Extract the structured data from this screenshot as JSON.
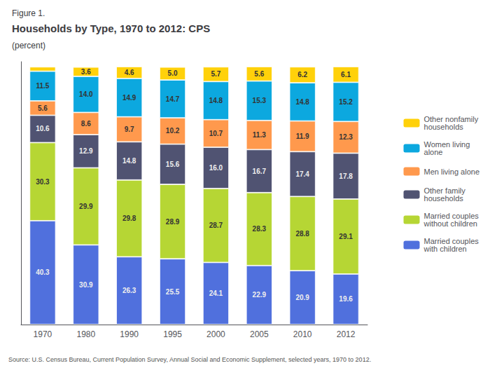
{
  "chart_data": {
    "type": "bar",
    "stacked": true,
    "subtitle": "Figure 1.",
    "title": "Households by Type, 1970 to 2012: CPS",
    "ylabel": "(percent)",
    "annotations": [
      "Source: U.S. Census Bureau, Current Population Survey, Annual Social and Economic Supplement, selected years, 1970 to 2012."
    ],
    "categories": [
      "1970",
      "1980",
      "1990",
      "1995",
      "2000",
      "2005",
      "2010",
      "2012"
    ],
    "series": [
      {
        "name": "Married couples\nwith children",
        "values": [
          40.3,
          30.9,
          26.3,
          25.5,
          24.1,
          22.9,
          20.9,
          19.6
        ],
        "value_labels": [
          "40.3",
          "30.9",
          "26.3",
          "25.5",
          "24.1",
          "22.9",
          "20.9",
          "19.6"
        ]
      },
      {
        "name": "Married couples\nwithout children",
        "values": [
          30.3,
          29.9,
          29.8,
          28.9,
          28.7,
          28.3,
          28.8,
          29.1
        ],
        "value_labels": [
          "30.3",
          "29.9",
          "29.8",
          "28.9",
          "28.7",
          "28.3",
          "28.8",
          "29.1"
        ]
      },
      {
        "name": "Other family\nhouseholds",
        "values": [
          10.6,
          12.9,
          14.8,
          15.6,
          16.0,
          16.7,
          17.4,
          17.8
        ],
        "value_labels": [
          "10.6",
          "12.9",
          "14.8",
          "15.6",
          "16.0",
          "16.7",
          "17.4",
          "17.8"
        ]
      },
      {
        "name": "Men living alone",
        "values": [
          5.6,
          8.6,
          9.7,
          10.2,
          10.7,
          11.3,
          11.9,
          12.3
        ],
        "value_labels": [
          "5.6",
          "8.6",
          "9.7",
          "10.2",
          "10.7",
          "11.3",
          "11.9",
          "12.3"
        ]
      },
      {
        "name": "Women living\nalone",
        "values": [
          11.5,
          14.0,
          14.9,
          14.7,
          14.8,
          15.3,
          14.8,
          15.2
        ],
        "value_labels": [
          "11.5",
          "14.0",
          "14.9",
          "14.7",
          "14.8",
          "15.3",
          "14.8",
          "15.2"
        ]
      },
      {
        "name": "Other nonfamily\nhouseholds",
        "values": [
          1.7,
          3.6,
          4.6,
          5.0,
          5.7,
          5.6,
          6.2,
          6.1
        ],
        "value_labels": [
          null,
          "3.6",
          "4.6",
          "5.0",
          "5.7",
          "5.6",
          "6.2",
          "6.1"
        ]
      }
    ],
    "ylim": [
      0,
      102
    ],
    "tick_labels": "x",
    "grid": false,
    "data_labels": true,
    "legend": "right"
  }
}
